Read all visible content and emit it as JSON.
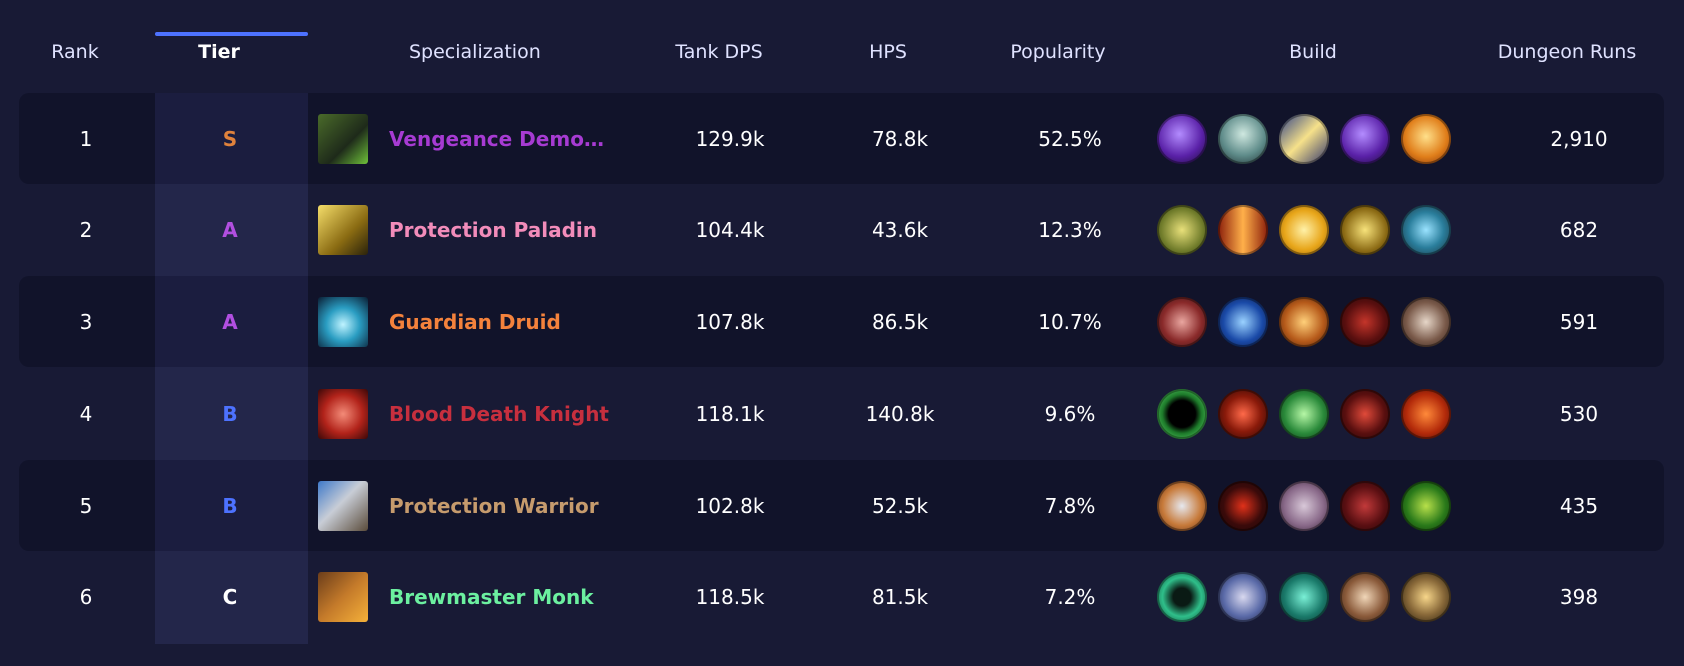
{
  "header": {
    "rank": "Rank",
    "tier": "Tier",
    "specialization": "Specialization",
    "tank_dps": "Tank DPS",
    "hps": "HPS",
    "popularity": "Popularity",
    "build": "Build",
    "dungeon_runs": "Dungeon Runs"
  },
  "colors": {
    "tier_S": "#e0823c",
    "tier_A": "#b14fe0",
    "tier_B": "#4d72ff",
    "tier_C": "#ffffff"
  },
  "rows": [
    {
      "rank": "1",
      "tier": "S",
      "spec": "Vengeance Demon H...",
      "spec_color": "#a73bd3",
      "spec_icon": "vengeance-demon-hunter-icon",
      "tank_dps": "129.9k",
      "hps": "78.8k",
      "popularity": "52.5%",
      "runs": "2,910",
      "build": [
        "fel-orb-talent-icon",
        "skull-talent-icon",
        "fel-blade-talent-icon",
        "fel-orb-talent-icon",
        "fire-talent-icon"
      ]
    },
    {
      "rank": "2",
      "tier": "A",
      "spec": "Protection Paladin",
      "spec_color": "#f28cba",
      "spec_icon": "protection-paladin-icon",
      "tank_dps": "104.4k",
      "hps": "43.6k",
      "popularity": "12.3%",
      "runs": "682",
      "build": [
        "lion-talent-icon",
        "flame-pillar-talent-icon",
        "holy-light-talent-icon",
        "golden-helm-talent-icon",
        "ornate-shield-talent-icon"
      ]
    },
    {
      "rank": "3",
      "tier": "A",
      "spec": "Guardian Druid",
      "spec_color": "#f4823c",
      "spec_icon": "guardian-druid-icon",
      "tank_dps": "107.8k",
      "hps": "86.5k",
      "popularity": "10.7%",
      "runs": "591",
      "build": [
        "claw-talent-icon",
        "blue-paw-talent-icon",
        "hammer-talent-icon",
        "bear-talent-icon",
        "fang-talent-icon"
      ]
    },
    {
      "rank": "4",
      "tier": "B",
      "spec": "Blood Death Knight",
      "spec_color": "#c72f3e",
      "spec_icon": "blood-death-knight-icon",
      "tank_dps": "118.1k",
      "hps": "140.8k",
      "popularity": "9.6%",
      "runs": "530",
      "build": [
        "void-portal-talent-icon",
        "red-skull-talent-icon",
        "green-ghoul-talent-icon",
        "blood-strike-talent-icon",
        "blood-shield-talent-icon"
      ]
    },
    {
      "rank": "5",
      "tier": "B",
      "spec": "Protection Warrior",
      "spec_color": "#c69b6d",
      "spec_icon": "protection-warrior-icon",
      "tank_dps": "102.8k",
      "hps": "52.5k",
      "popularity": "7.8%",
      "runs": "435",
      "build": [
        "shield-talent-icon",
        "crescent-strike-talent-icon",
        "warcry-talent-icon",
        "demon-talent-icon",
        "orc-talent-icon"
      ]
    },
    {
      "rank": "6",
      "tier": "C",
      "spec": "Brewmaster Monk",
      "spec_color": "#6cf0a0",
      "spec_icon": "brewmaster-monk-icon",
      "tank_dps": "118.5k",
      "hps": "81.5k",
      "popularity": "7.2%",
      "runs": "398",
      "build": [
        "jade-swirl-talent-icon",
        "staff-talent-icon",
        "jade-serpent-talent-icon",
        "brew-keg-talent-icon",
        "monk-master-talent-icon"
      ]
    }
  ]
}
